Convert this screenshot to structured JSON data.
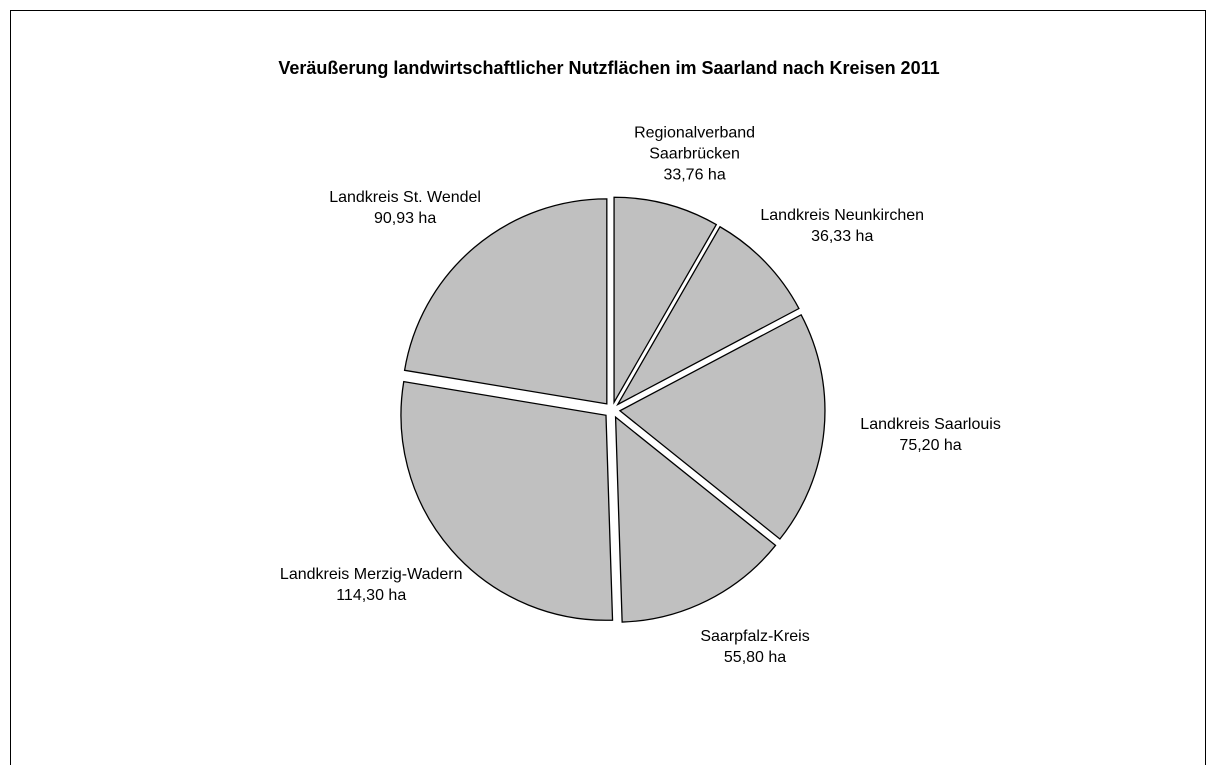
{
  "chart_data": {
    "type": "pie",
    "title": "Veräußerung landwirtschaftlicher Nutzflächen im Saarland nach Kreisen 2011",
    "categories": [
      "Regionalverband Saarbrücken",
      "Landkreis Neunkirchen",
      "Landkreis Saarlouis",
      "Saarpfalz-Kreis",
      "Landkreis Merzig-Wadern",
      "Landkreis St. Wendel"
    ],
    "values": [
      33.76,
      36.33,
      75.2,
      55.8,
      114.3,
      90.93
    ],
    "value_labels": [
      "33,76 ha",
      "36,33 ha",
      "75,20 ha",
      "55,80 ha",
      "114,30 ha",
      "90,93 ha"
    ],
    "color": "#c0c0c0"
  }
}
